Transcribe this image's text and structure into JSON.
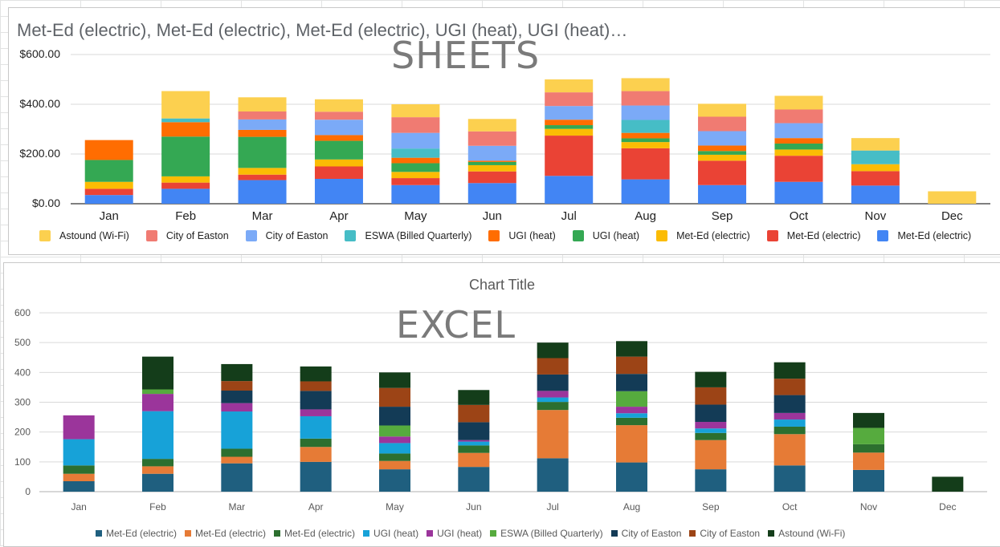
{
  "chart_data": [
    {
      "id": "sheets",
      "type": "bar",
      "stacked": true,
      "title": "Met-Ed (electric), Met-Ed (electric), Met-Ed (electric), UGI (heat), UGI (heat)…",
      "watermark": "SHEETS",
      "categories": [
        "Jan",
        "Feb",
        "Mar",
        "Apr",
        "May",
        "Jun",
        "Jul",
        "Aug",
        "Sep",
        "Oct",
        "Nov",
        "Dec"
      ],
      "ylim": [
        0,
        600
      ],
      "yticks": [
        0,
        200,
        400,
        600
      ],
      "ytick_labels": [
        "$0.00",
        "$200.00",
        "$400.00",
        "$600.00"
      ],
      "legend_position": "bottom",
      "series": [
        {
          "name": "Met-Ed (electric)",
          "color": "#4285f4",
          "values": [
            35,
            60,
            95,
            100,
            75,
            83,
            112,
            98,
            75,
            88,
            73,
            0
          ]
        },
        {
          "name": "Met-Ed (electric)",
          "color": "#ea4335",
          "values": [
            25,
            25,
            22,
            50,
            28,
            47,
            162,
            125,
            98,
            105,
            58,
            0
          ]
        },
        {
          "name": "Met-Ed (electric)",
          "color": "#fbbc04",
          "values": [
            28,
            25,
            27,
            28,
            25,
            25,
            27,
            25,
            24,
            25,
            28,
            0
          ]
        },
        {
          "name": "UGI (heat)",
          "color": "#34a853",
          "values": [
            88,
            160,
            125,
            75,
            35,
            13,
            15,
            15,
            15,
            24,
            0,
            0
          ]
        },
        {
          "name": "UGI (heat)",
          "color": "#ff6d01",
          "values": [
            80,
            58,
            28,
            23,
            22,
            5,
            22,
            22,
            22,
            22,
            0,
            0
          ]
        },
        {
          "name": "ESWA (Billed Quarterly)",
          "color": "#46bdc6",
          "values": [
            0,
            15,
            0,
            0,
            37,
            0,
            0,
            52,
            0,
            0,
            55,
            0
          ]
        },
        {
          "name": "City of Easton",
          "color": "#7baaf7",
          "values": [
            0,
            0,
            42,
            62,
            63,
            60,
            55,
            58,
            58,
            60,
            0,
            0
          ]
        },
        {
          "name": "City of Easton",
          "color": "#f07b72",
          "values": [
            0,
            0,
            32,
            32,
            63,
            58,
            55,
            58,
            58,
            55,
            0,
            0
          ]
        },
        {
          "name": "Astound (Wi-Fi)",
          "color": "#fcd04f",
          "values": [
            0,
            110,
            57,
            50,
            52,
            50,
            52,
            52,
            52,
            55,
            50,
            50
          ]
        }
      ],
      "legend_order": [
        "Astound (Wi-Fi)",
        "City of Easton",
        "City of Easton",
        "ESWA (Billed Quarterly)",
        "UGI (heat)",
        "UGI (heat)",
        "Met-Ed (electric)",
        "Met-Ed (electric)",
        "Met-Ed (electric)"
      ],
      "legend_colors": [
        "#fcd04f",
        "#f07b72",
        "#7baaf7",
        "#46bdc6",
        "#ff6d01",
        "#34a853",
        "#fbbc04",
        "#ea4335",
        "#4285f4"
      ]
    },
    {
      "id": "excel",
      "type": "bar",
      "stacked": true,
      "title": "Chart Title",
      "watermark": "EXCEL",
      "categories": [
        "Jan",
        "Feb",
        "Mar",
        "Apr",
        "May",
        "Jun",
        "Jul",
        "Aug",
        "Sep",
        "Oct",
        "Nov",
        "Dec"
      ],
      "ylim": [
        0,
        600
      ],
      "yticks": [
        0,
        100,
        200,
        300,
        400,
        500,
        600
      ],
      "ytick_labels": [
        "0",
        "100",
        "200",
        "300",
        "400",
        "500",
        "600"
      ],
      "legend_position": "bottom",
      "series": [
        {
          "name": "Met-Ed (electric)",
          "color": "#1f5f7f",
          "values": [
            35,
            60,
            95,
            100,
            75,
            83,
            112,
            98,
            75,
            88,
            73,
            0
          ]
        },
        {
          "name": "Met-Ed (electric)",
          "color": "#e67b36",
          "values": [
            25,
            25,
            22,
            50,
            28,
            47,
            162,
            125,
            98,
            105,
            58,
            0
          ]
        },
        {
          "name": "Met-Ed (electric)",
          "color": "#2c6f2f",
          "values": [
            28,
            25,
            27,
            28,
            25,
            25,
            27,
            25,
            24,
            25,
            28,
            0
          ]
        },
        {
          "name": "UGI (heat)",
          "color": "#17a2d8",
          "values": [
            88,
            160,
            125,
            75,
            35,
            13,
            15,
            15,
            15,
            24,
            0,
            0
          ]
        },
        {
          "name": "UGI (heat)",
          "color": "#9b359b",
          "values": [
            80,
            58,
            28,
            23,
            22,
            5,
            22,
            22,
            22,
            22,
            0,
            0
          ]
        },
        {
          "name": "ESWA (Billed Quarterly)",
          "color": "#56ab3e",
          "values": [
            0,
            15,
            0,
            0,
            37,
            0,
            0,
            52,
            0,
            0,
            55,
            0
          ]
        },
        {
          "name": "City of Easton",
          "color": "#133b56",
          "values": [
            0,
            0,
            42,
            62,
            63,
            60,
            55,
            58,
            58,
            60,
            0,
            0
          ]
        },
        {
          "name": "City of Easton",
          "color": "#9c4416",
          "values": [
            0,
            0,
            32,
            32,
            63,
            58,
            55,
            58,
            58,
            55,
            0,
            0
          ]
        },
        {
          "name": "Astound (Wi-Fi)",
          "color": "#143d1a",
          "values": [
            0,
            110,
            57,
            50,
            52,
            50,
            52,
            52,
            52,
            55,
            50,
            50
          ]
        }
      ],
      "legend_order": [
        "Met-Ed (electric)",
        "Met-Ed (electric)",
        "Met-Ed (electric)",
        "UGI (heat)",
        "UGI (heat)",
        "ESWA (Billed Quarterly)",
        "City of Easton",
        "City of Easton",
        "Astound (Wi-Fi)"
      ],
      "legend_colors": [
        "#1f5f7f",
        "#e67b36",
        "#2c6f2f",
        "#17a2d8",
        "#9b359b",
        "#56ab3e",
        "#133b56",
        "#9c4416",
        "#143d1a"
      ]
    }
  ]
}
